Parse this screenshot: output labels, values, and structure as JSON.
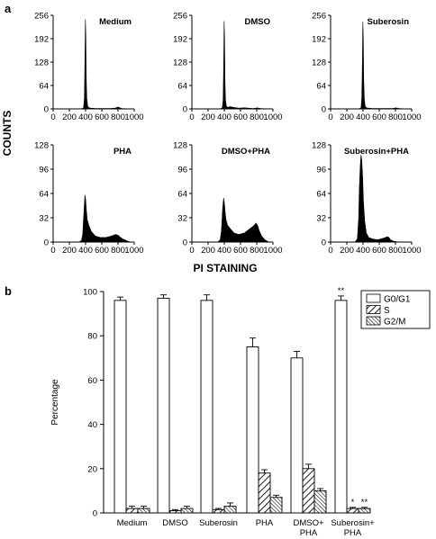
{
  "panel_a": {
    "label": "a",
    "y_axis_title": "COUNTS",
    "x_axis_title": "PI STAINING"
  },
  "panel_b": {
    "label": "b"
  },
  "chart_data": [
    {
      "type": "area",
      "panel": "a",
      "title": "Medium",
      "xlim": [
        0,
        1000
      ],
      "ylim": [
        0,
        256
      ],
      "xticks": [
        0,
        200,
        400,
        600,
        800,
        1000
      ],
      "yticks": [
        0,
        64,
        128,
        192,
        256
      ],
      "x": [
        0,
        330,
        360,
        375,
        385,
        392,
        398,
        403,
        408,
        415,
        425,
        440,
        470,
        520,
        600,
        700,
        760,
        790,
        805,
        820,
        850,
        950,
        1000
      ],
      "y": [
        0,
        0,
        1,
        3,
        30,
        140,
        245,
        200,
        90,
        30,
        8,
        3,
        2,
        1,
        1,
        1,
        2,
        4,
        5,
        3,
        1,
        0,
        0
      ]
    },
    {
      "type": "area",
      "panel": "a",
      "title": "DMSO",
      "xlim": [
        0,
        1000
      ],
      "ylim": [
        0,
        256
      ],
      "xticks": [
        0,
        200,
        400,
        600,
        800,
        1000
      ],
      "yticks": [
        0,
        64,
        128,
        192,
        256
      ],
      "x": [
        0,
        330,
        360,
        375,
        385,
        392,
        398,
        403,
        408,
        415,
        425,
        440,
        470,
        520,
        580,
        650,
        700,
        760,
        790,
        805,
        820,
        850,
        950,
        1000
      ],
      "y": [
        0,
        0,
        1,
        3,
        25,
        120,
        240,
        190,
        80,
        25,
        8,
        4,
        6,
        4,
        2,
        3,
        2,
        1,
        2,
        3,
        2,
        1,
        0,
        0
      ]
    },
    {
      "type": "area",
      "panel": "a",
      "title": "Suberosin",
      "xlim": [
        0,
        1000
      ],
      "ylim": [
        0,
        256
      ],
      "xticks": [
        0,
        200,
        400,
        600,
        800,
        1000
      ],
      "yticks": [
        0,
        64,
        128,
        192,
        256
      ],
      "x": [
        0,
        330,
        360,
        375,
        385,
        392,
        398,
        403,
        408,
        415,
        425,
        440,
        470,
        520,
        600,
        700,
        760,
        790,
        805,
        820,
        850,
        950,
        1000
      ],
      "y": [
        0,
        0,
        1,
        3,
        28,
        130,
        238,
        195,
        85,
        28,
        8,
        3,
        2,
        1,
        1,
        1,
        1,
        2,
        3,
        2,
        1,
        0,
        0
      ]
    },
    {
      "type": "area",
      "panel": "a",
      "title": "PHA",
      "xlim": [
        0,
        1000
      ],
      "ylim": [
        0,
        128
      ],
      "xticks": [
        0,
        200,
        400,
        600,
        800,
        1000
      ],
      "yticks": [
        0,
        32,
        64,
        96,
        128
      ],
      "x": [
        0,
        320,
        350,
        365,
        380,
        392,
        400,
        410,
        420,
        440,
        470,
        520,
        580,
        650,
        720,
        770,
        800,
        830,
        860,
        900,
        950,
        1000
      ],
      "y": [
        0,
        0,
        2,
        10,
        40,
        62,
        57,
        42,
        30,
        22,
        14,
        8,
        6,
        6,
        8,
        10,
        9,
        6,
        4,
        2,
        0,
        0
      ]
    },
    {
      "type": "area",
      "panel": "a",
      "title": "DMSO+PHA",
      "xlim": [
        0,
        1000
      ],
      "ylim": [
        0,
        128
      ],
      "xticks": [
        0,
        200,
        400,
        600,
        800,
        1000
      ],
      "yticks": [
        0,
        32,
        64,
        96,
        128
      ],
      "x": [
        0,
        320,
        350,
        365,
        380,
        392,
        400,
        410,
        420,
        440,
        470,
        520,
        580,
        650,
        720,
        770,
        790,
        810,
        830,
        860,
        900,
        950,
        1000
      ],
      "y": [
        0,
        0,
        3,
        15,
        45,
        58,
        52,
        40,
        30,
        22,
        18,
        12,
        10,
        12,
        18,
        22,
        25,
        22,
        15,
        8,
        3,
        0,
        0
      ]
    },
    {
      "type": "area",
      "panel": "a",
      "title": "Suberosin+PHA",
      "xlim": [
        0,
        1000
      ],
      "ylim": [
        0,
        128
      ],
      "xticks": [
        0,
        200,
        400,
        600,
        800,
        1000
      ],
      "yticks": [
        0,
        32,
        64,
        96,
        128
      ],
      "x": [
        0,
        300,
        330,
        345,
        355,
        365,
        375,
        385,
        395,
        405,
        420,
        440,
        470,
        520,
        580,
        650,
        700,
        720,
        740,
        780,
        850,
        1000
      ],
      "y": [
        0,
        0,
        4,
        30,
        70,
        100,
        115,
        108,
        85,
        55,
        28,
        12,
        6,
        4,
        3,
        5,
        7,
        6,
        3,
        1,
        0,
        0
      ]
    },
    {
      "type": "bar",
      "panel": "b",
      "ylabel": "Percentage",
      "ylim": [
        0,
        100
      ],
      "yticks": [
        0,
        20,
        40,
        60,
        80,
        100
      ],
      "categories": [
        "Medium",
        "DMSO",
        "Suberosin",
        "PHA",
        "DMSO+\nPHA",
        "Suberosin+\nPHA"
      ],
      "legend_position": "top-right",
      "series": [
        {
          "name": "G0/G1",
          "pattern": "none",
          "values": [
            96,
            97,
            96,
            75,
            70,
            96
          ],
          "errors": [
            1.5,
            1.5,
            2.5,
            4,
            3,
            2
          ]
        },
        {
          "name": "S",
          "pattern": "hatch-wide",
          "values": [
            2,
            1,
            1.5,
            18,
            20,
            2
          ],
          "errors": [
            1,
            0.5,
            0.5,
            1.5,
            2,
            0.5
          ]
        },
        {
          "name": "G2/M",
          "pattern": "hatch-narrow",
          "values": [
            2,
            2,
            3,
            7,
            10,
            2
          ],
          "errors": [
            1,
            1,
            1.5,
            1,
            1,
            0.5
          ]
        }
      ],
      "annotations": [
        {
          "category": 5,
          "series": 0,
          "text": "**"
        },
        {
          "category": 5,
          "series": 1,
          "text": "*"
        },
        {
          "category": 5,
          "series": 2,
          "text": "**"
        }
      ]
    }
  ]
}
